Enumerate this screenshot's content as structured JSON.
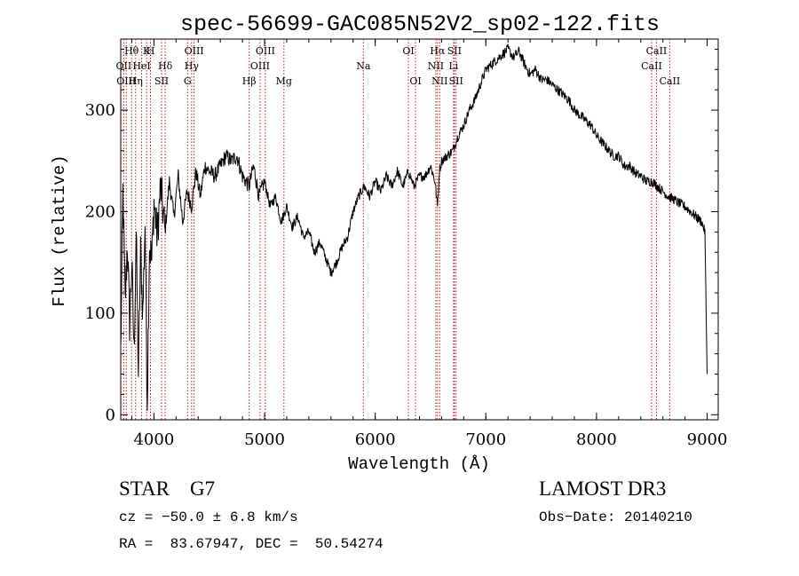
{
  "chart_data": {
    "type": "line",
    "title": "spec-56699-GAC085N52V2_sp02-122.fits",
    "xlabel": "Wavelength (Å)",
    "ylabel": "Flux (relative)",
    "xlim": [
      3700,
      9100
    ],
    "ylim": [
      -5,
      370
    ],
    "xticks": [
      4000,
      5000,
      6000,
      7000,
      8000,
      9000
    ],
    "yticks": [
      0,
      100,
      200,
      300
    ],
    "line_color": "#000000",
    "marker_color": "#b22222",
    "spectrum": {
      "wavelength": [
        3700,
        3720,
        3740,
        3760,
        3780,
        3800,
        3820,
        3840,
        3860,
        3880,
        3900,
        3920,
        3940,
        3960,
        3980,
        4000,
        4030,
        4060,
        4100,
        4140,
        4180,
        4220,
        4260,
        4300,
        4340,
        4380,
        4420,
        4460,
        4500,
        4550,
        4600,
        4650,
        4700,
        4750,
        4800,
        4860,
        4900,
        4950,
        5000,
        5050,
        5100,
        5150,
        5200,
        5250,
        5300,
        5350,
        5400,
        5450,
        5500,
        5550,
        5600,
        5650,
        5700,
        5750,
        5800,
        5850,
        5900,
        5950,
        6000,
        6050,
        6100,
        6150,
        6200,
        6250,
        6300,
        6350,
        6400,
        6450,
        6500,
        6540,
        6563,
        6580,
        6600,
        6650,
        6700,
        6750,
        6800,
        6850,
        6900,
        6950,
        7000,
        7050,
        7100,
        7150,
        7200,
        7250,
        7300,
        7350,
        7400,
        7450,
        7500,
        7550,
        7600,
        7650,
        7700,
        7750,
        7800,
        7850,
        7900,
        7950,
        8000,
        8050,
        8100,
        8150,
        8200,
        8250,
        8300,
        8350,
        8400,
        8450,
        8500,
        8550,
        8600,
        8650,
        8700,
        8750,
        8800,
        8850,
        8900,
        8950,
        8980,
        9000
      ],
      "flux": [
        60,
        220,
        110,
        170,
        90,
        150,
        60,
        180,
        40,
        160,
        100,
        190,
        15,
        170,
        150,
        210,
        175,
        225,
        180,
        230,
        195,
        235,
        190,
        220,
        205,
        240,
        215,
        245,
        240,
        235,
        245,
        255,
        250,
        255,
        235,
        225,
        245,
        215,
        230,
        205,
        215,
        190,
        205,
        185,
        195,
        175,
        180,
        160,
        170,
        155,
        140,
        150,
        165,
        175,
        200,
        215,
        225,
        215,
        230,
        220,
        235,
        225,
        240,
        225,
        240,
        225,
        235,
        235,
        245,
        230,
        205,
        240,
        250,
        255,
        260,
        275,
        285,
        300,
        310,
        325,
        340,
        345,
        350,
        355,
        360,
        352,
        358,
        345,
        335,
        340,
        330,
        330,
        325,
        320,
        315,
        310,
        300,
        295,
        290,
        285,
        275,
        268,
        262,
        255,
        255,
        245,
        245,
        238,
        235,
        230,
        230,
        225,
        220,
        215,
        212,
        208,
        205,
        200,
        195,
        190,
        180,
        40
      ]
    },
    "lines": [
      {
        "label": "Hθ",
        "x": 3798
      },
      {
        "label": "OII",
        "x": 3727
      },
      {
        "label": "OIII",
        "x": 3750
      },
      {
        "label": "K",
        "x": 3934
      },
      {
        "label": "HeI",
        "x": 3889
      },
      {
        "label": "Hη",
        "x": 3835
      },
      {
        "label": "H",
        "x": 3969
      },
      {
        "label": "Hδ",
        "x": 4102
      },
      {
        "label": "SII",
        "x": 4069
      },
      {
        "label": "OIII",
        "x": 4363
      },
      {
        "label": "Hγ",
        "x": 4341
      },
      {
        "label": "G",
        "x": 4304
      },
      {
        "label": "OIII",
        "x": 5007
      },
      {
        "label": "OIII",
        "x": 4959
      },
      {
        "label": "Hβ",
        "x": 4861
      },
      {
        "label": "Mg",
        "x": 5175
      },
      {
        "label": "Na",
        "x": 5893
      },
      {
        "label": "OI",
        "x": 6300
      },
      {
        "label": "OI",
        "x": 6364
      },
      {
        "label": "Hα",
        "x": 6563
      },
      {
        "label": "SII",
        "x": 6716
      },
      {
        "label": "NII",
        "x": 6548
      },
      {
        "label": "Li",
        "x": 6708
      },
      {
        "label": "NII",
        "x": 6583
      },
      {
        "label": "SII",
        "x": 6731
      },
      {
        "label": "CaII",
        "x": 8542
      },
      {
        "label": "CaII",
        "x": 8498
      },
      {
        "label": "CaII",
        "x": 8662
      }
    ]
  },
  "info": {
    "class_line": "STAR    G7",
    "survey": "LAMOST DR3",
    "cz": "cz = −50.0 ± 6.8 km/s",
    "obs_date": "Obs−Date: 20140210",
    "coords": "RA =  83.67947, DEC =  50.54274"
  }
}
